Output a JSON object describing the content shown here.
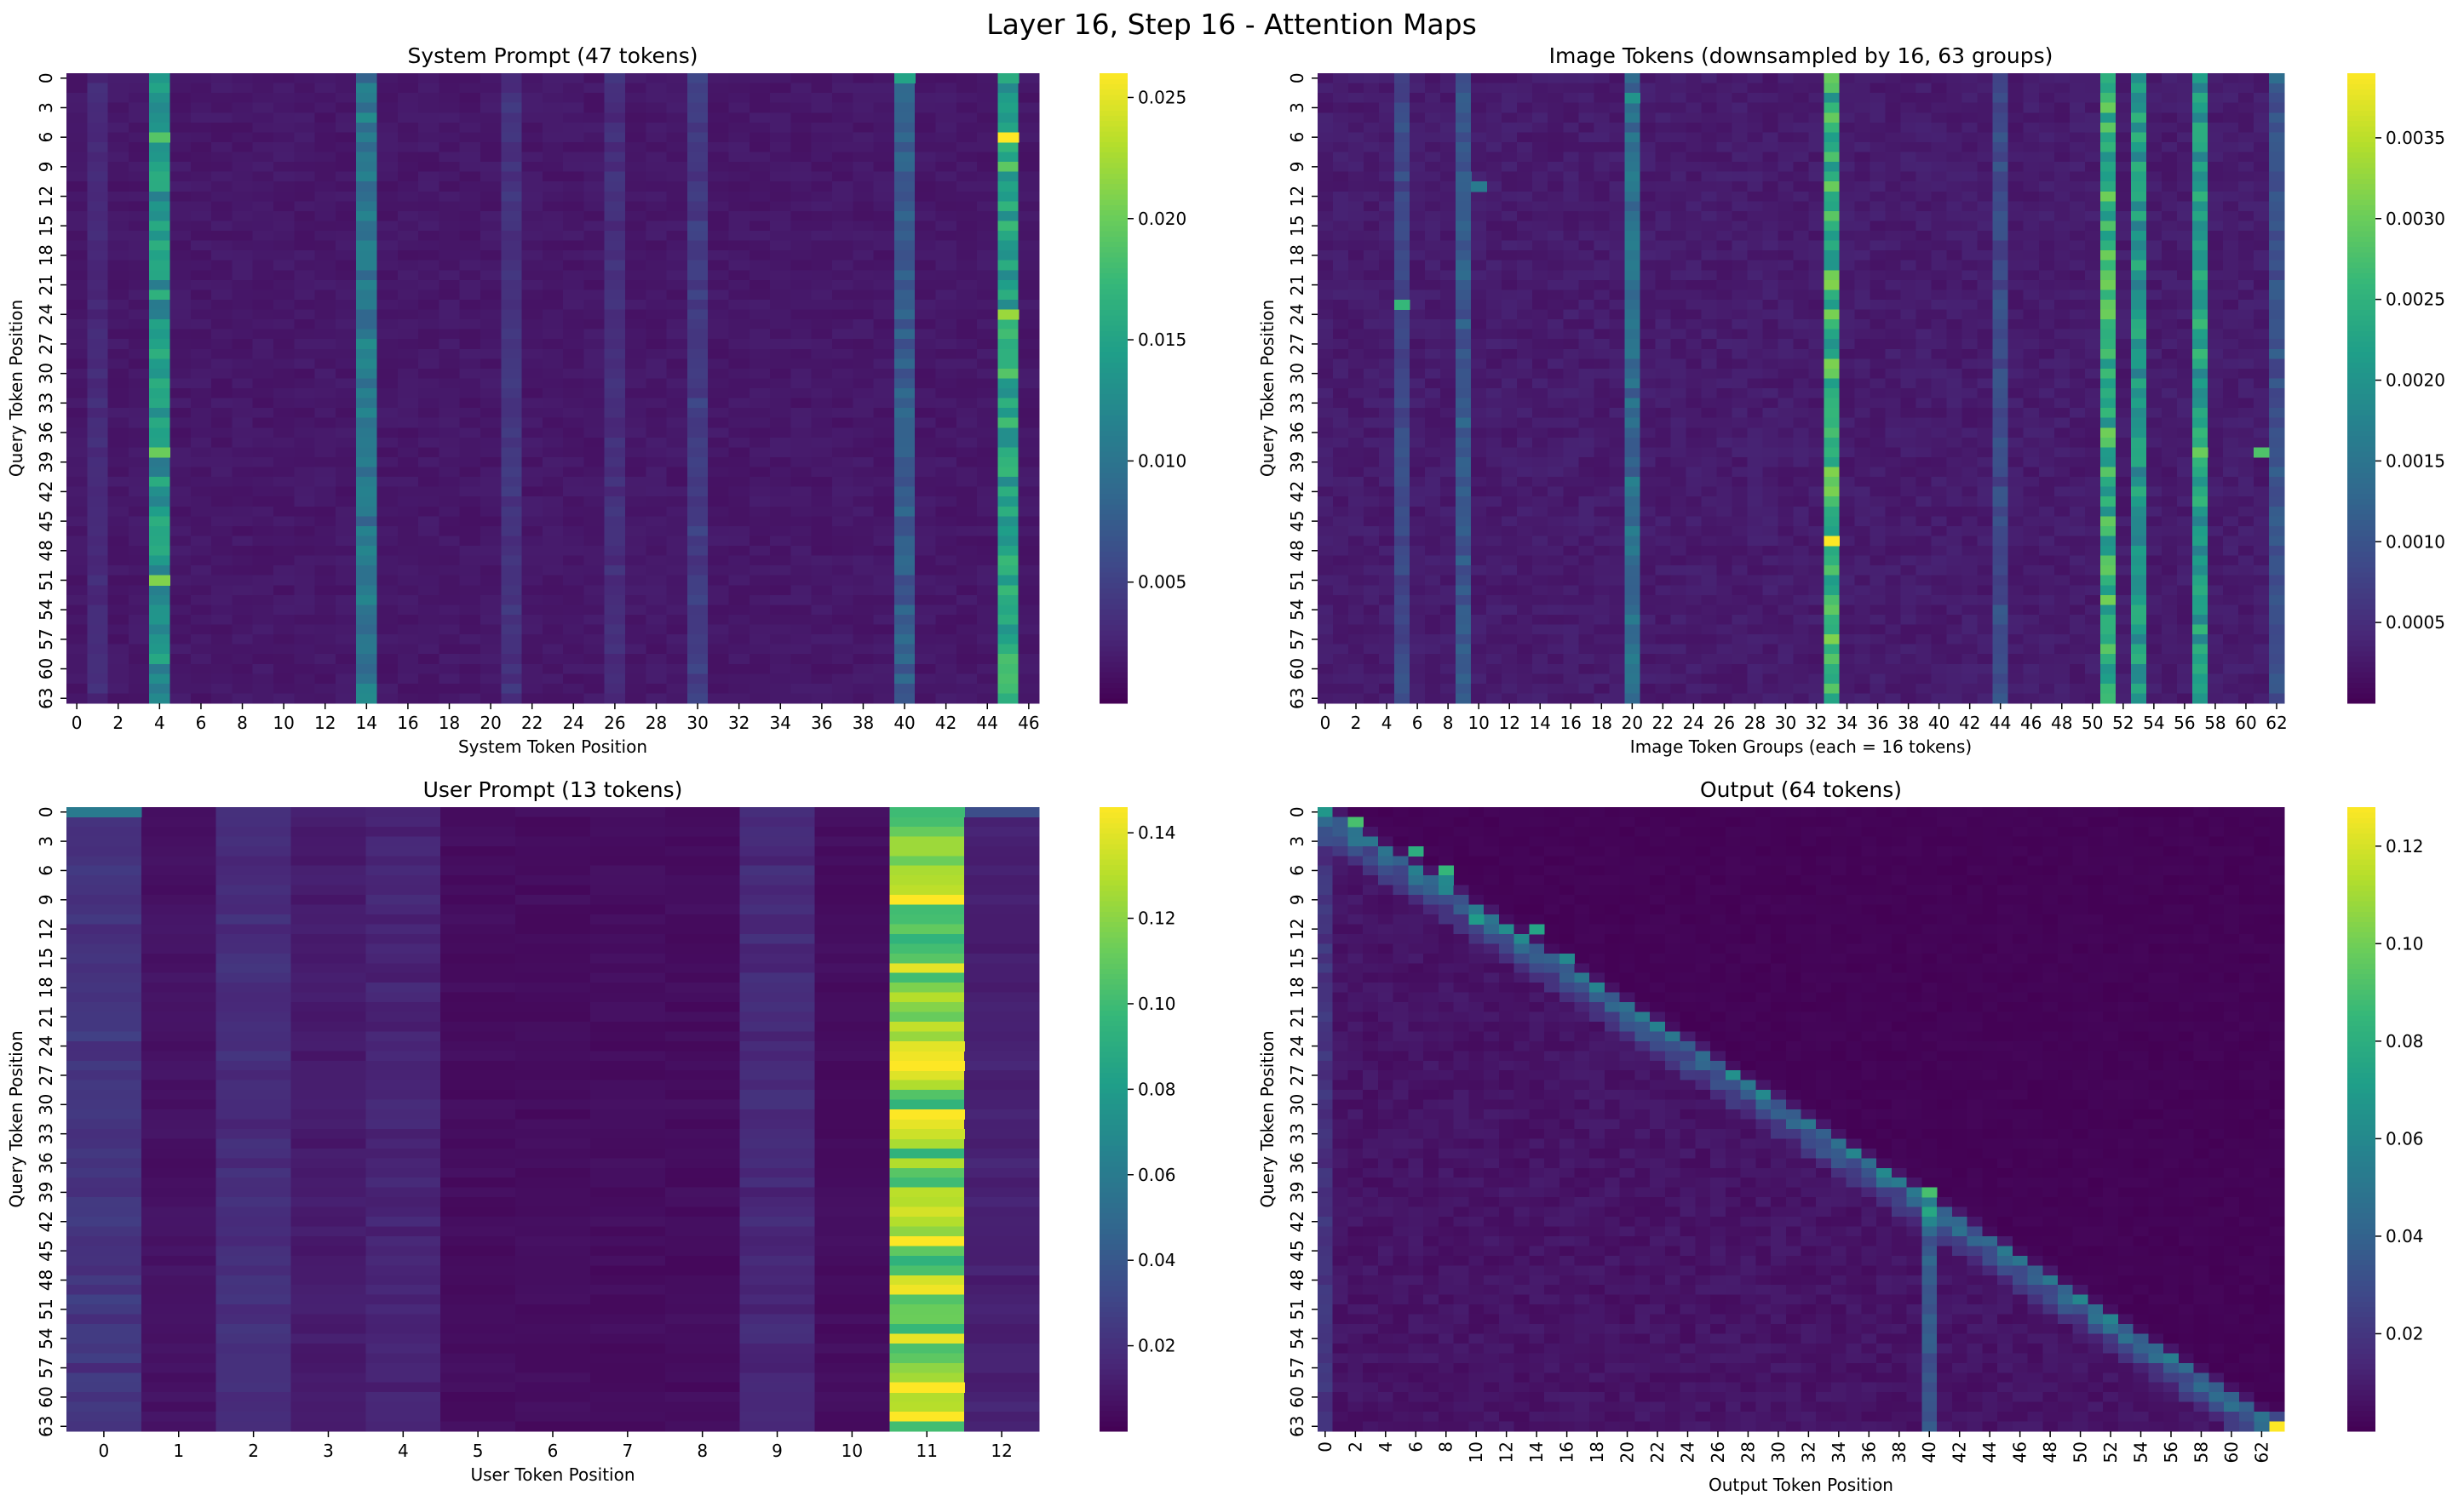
{
  "figure": {
    "title": "Layer 16, Step 16 - Attention Maps",
    "colormap": [
      "#440154",
      "#482878",
      "#3e4989",
      "#31688e",
      "#26828e",
      "#1f9e89",
      "#35b779",
      "#6ece58",
      "#b5de2b",
      "#fde725"
    ]
  },
  "chart_data": [
    {
      "id": "system",
      "type": "heatmap",
      "title": "System Prompt (47 tokens)",
      "xlabel": "System Token Position",
      "ylabel": "Query Token Position",
      "n_cols": 47,
      "n_rows": 64,
      "xtick_step": 2,
      "ytick_step": 3,
      "xtick_rotate": false,
      "vmin": 0.0,
      "vmax": 0.026,
      "colorbar_ticks": [
        0.005,
        0.01,
        0.015,
        0.02,
        0.025
      ],
      "colorbar_labels": [
        "0.005",
        "0.010",
        "0.015",
        "0.020",
        "0.025"
      ],
      "base": 0.0012,
      "noise": 0.0009,
      "column_profile": {
        "4": 0.012,
        "14": 0.0085,
        "40": 0.006,
        "45": 0.014,
        "30": 0.003,
        "21": 0.0022,
        "26": 0.0018,
        "1": 0.0015
      },
      "hotspots": [
        [
          6,
          45,
          0.026
        ],
        [
          24,
          45,
          0.022
        ],
        [
          38,
          4,
          0.02
        ],
        [
          6,
          4,
          0.019
        ],
        [
          51,
          4,
          0.021
        ],
        [
          0,
          40,
          0.015
        ],
        [
          0,
          45,
          0.016
        ]
      ],
      "diagonal": null
    },
    {
      "id": "image",
      "type": "heatmap",
      "title": "Image Tokens (downsampled by 16, 63 groups)",
      "xlabel": "Image Token Groups (each = 16 tokens)",
      "ylabel": "Query Token Position",
      "n_cols": 63,
      "n_rows": 64,
      "xtick_step": 2,
      "ytick_step": 3,
      "xtick_rotate": false,
      "vmin": 0.0,
      "vmax": 0.0039,
      "colorbar_ticks": [
        0.0005,
        0.001,
        0.0015,
        0.002,
        0.0025,
        0.003,
        0.0035
      ],
      "colorbar_labels": [
        "0.0005",
        "0.0010",
        "0.0015",
        "0.0020",
        "0.0025",
        "0.0030",
        "0.0035"
      ],
      "base": 0.0002,
      "noise": 0.00018,
      "column_profile": {
        "33": 0.0023,
        "51": 0.0022,
        "53": 0.0018,
        "57": 0.0019,
        "20": 0.0011,
        "9": 0.0008,
        "5": 0.0006,
        "44": 0.0006,
        "62": 0.0007
      },
      "hotspots": [
        [
          47,
          33,
          0.0039
        ],
        [
          38,
          57,
          0.003
        ],
        [
          38,
          61,
          0.0028
        ],
        [
          23,
          5,
          0.0026
        ],
        [
          2,
          20,
          0.002
        ],
        [
          11,
          10,
          0.0016
        ],
        [
          0,
          62,
          0.0014
        ],
        [
          10,
          9,
          0.0012
        ]
      ],
      "diagonal": null
    },
    {
      "id": "user",
      "type": "heatmap",
      "title": "User Prompt (13 tokens)",
      "xlabel": "User Token Position",
      "ylabel": "Query Token Position",
      "n_cols": 13,
      "n_rows": 64,
      "xtick_step": 1,
      "ytick_step": 3,
      "xtick_rotate": false,
      "vmin": 0.0,
      "vmax": 0.146,
      "colorbar_ticks": [
        0.02,
        0.04,
        0.06,
        0.08,
        0.1,
        0.12,
        0.14
      ],
      "colorbar_labels": [
        "0.02",
        "0.04",
        "0.06",
        "0.08",
        "0.10",
        "0.12",
        "0.14"
      ],
      "base": 0.003,
      "noise": 0.004,
      "column_profile": {
        "11": 0.115,
        "0": 0.018,
        "2": 0.014,
        "4": 0.01,
        "9": 0.012,
        "12": 0.008,
        "3": 0.006,
        "1": 0.002
      },
      "hotspots": [
        [
          0,
          12,
          0.035
        ],
        [
          0,
          0,
          0.06
        ],
        [
          0,
          11,
          0.1
        ],
        [
          26,
          11,
          0.146
        ],
        [
          31,
          11,
          0.146
        ],
        [
          59,
          11,
          0.146
        ],
        [
          24,
          11,
          0.14
        ],
        [
          33,
          11,
          0.135
        ]
      ],
      "diagonal": null
    },
    {
      "id": "output",
      "type": "heatmap",
      "title": "Output (64 tokens)",
      "xlabel": "Output Token Position",
      "ylabel": "Query Token Position",
      "n_cols": 64,
      "n_rows": 64,
      "xtick_step": 2,
      "ytick_step": 3,
      "xtick_rotate": true,
      "vmin": 0.0,
      "vmax": 0.128,
      "colorbar_ticks": [
        0.02,
        0.04,
        0.06,
        0.08,
        0.1,
        0.12
      ],
      "colorbar_labels": [
        "0.02",
        "0.04",
        "0.06",
        "0.08",
        "0.10",
        "0.12"
      ],
      "base": 0.004,
      "noise": 0.006,
      "column_profile": {
        "40": 0.028,
        "63": 0.018,
        "0": 0.012
      },
      "hotspots": [
        [
          1,
          2,
          0.09
        ],
        [
          4,
          6,
          0.08
        ],
        [
          6,
          8,
          0.085
        ],
        [
          11,
          10,
          0.07
        ],
        [
          12,
          14,
          0.075
        ],
        [
          15,
          16,
          0.06
        ],
        [
          39,
          40,
          0.09
        ],
        [
          63,
          63,
          0.128
        ],
        [
          7,
          8,
          0.06
        ]
      ],
      "diagonal": {
        "strength": 0.04,
        "width": 3
      }
    }
  ]
}
